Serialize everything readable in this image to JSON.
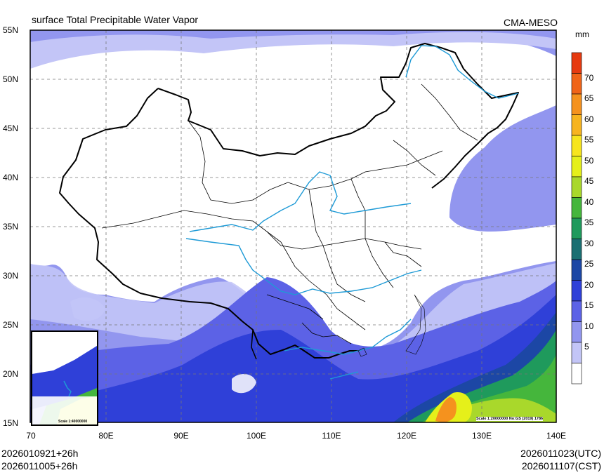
{
  "header": {
    "title": "surface Total Precipitable Water Vapor",
    "source": "CMA-MESO"
  },
  "colorbar": {
    "unit": "mm",
    "ticks": [
      "70",
      "65",
      "60",
      "55",
      "50",
      "45",
      "40",
      "35",
      "30",
      "25",
      "20",
      "15",
      "10",
      "5"
    ],
    "colors": [
      "#e63a10",
      "#f06418",
      "#f5921e",
      "#f7b41f",
      "#f7e51d",
      "#e5f01a",
      "#a9d82b",
      "#45b63c",
      "#1f9a5c",
      "#1a6f72",
      "#1c47a5",
      "#2f40d8",
      "#5c62e6",
      "#9296ef",
      "#c3c5f7",
      "#ffffff"
    ]
  },
  "axes": {
    "lat_labels": [
      "55N",
      "50N",
      "45N",
      "40N",
      "35N",
      "30N",
      "25N",
      "20N",
      "15N"
    ],
    "lon_labels": [
      "70",
      "80E",
      "90E",
      "100E",
      "110E",
      "120E",
      "130E",
      "140E"
    ]
  },
  "inset": {
    "label": "Scale 1:40000000"
  },
  "scale_note": "Scale 1:20000000 No:GS (2019) 1786",
  "footer": {
    "left_line1": "2026010921+26h",
    "left_line2": "2026011005+26h",
    "right_line1": "2026011023(UTC)",
    "right_line2": "2026011107(CST)"
  }
}
